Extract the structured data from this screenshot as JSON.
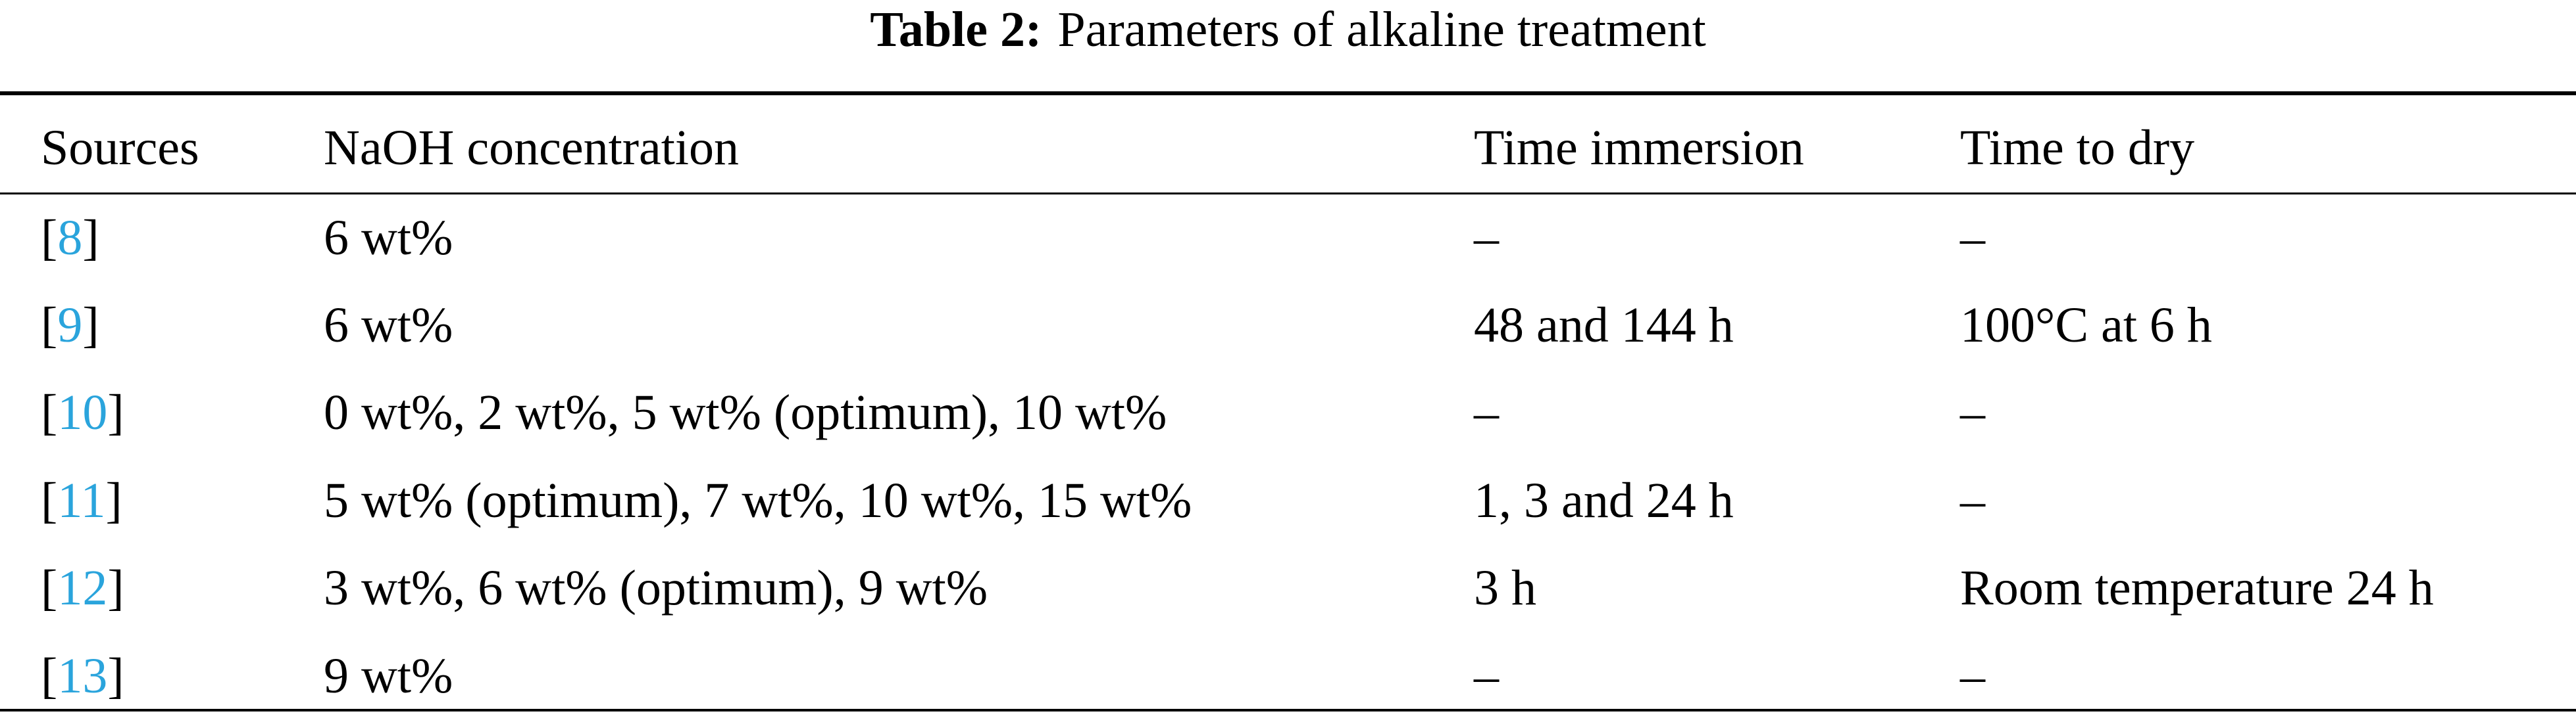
{
  "table": {
    "caption": {
      "label": "Table 2:",
      "text": "Parameters of alkaline treatment"
    },
    "headers": [
      "Sources",
      "NaOH concentration",
      "Time immersion",
      "Time to dry"
    ],
    "rows": [
      [
        [
          "[",
          "8",
          "]"
        ],
        "6 wt%",
        "–",
        "–"
      ],
      [
        [
          "[",
          "9",
          "]"
        ],
        "6 wt%",
        "48 and 144 h",
        "100°C at 6 h"
      ],
      [
        [
          "[",
          "10",
          "]"
        ],
        "0 wt%, 2 wt%, 5 wt% (optimum), 10 wt%",
        "–",
        "–"
      ],
      [
        [
          "[",
          "11",
          "]"
        ],
        "5 wt% (optimum), 7 wt%, 10 wt%, 15 wt%",
        "1, 3 and 24 h",
        "–"
      ],
      [
        [
          "[",
          "12",
          "]"
        ],
        "3 wt%, 6 wt% (optimum), 9 wt%",
        "3 h",
        "Room temperature 24 h"
      ],
      [
        [
          "[",
          "13",
          "]"
        ],
        "9 wt%",
        "–",
        "–"
      ]
    ]
  }
}
